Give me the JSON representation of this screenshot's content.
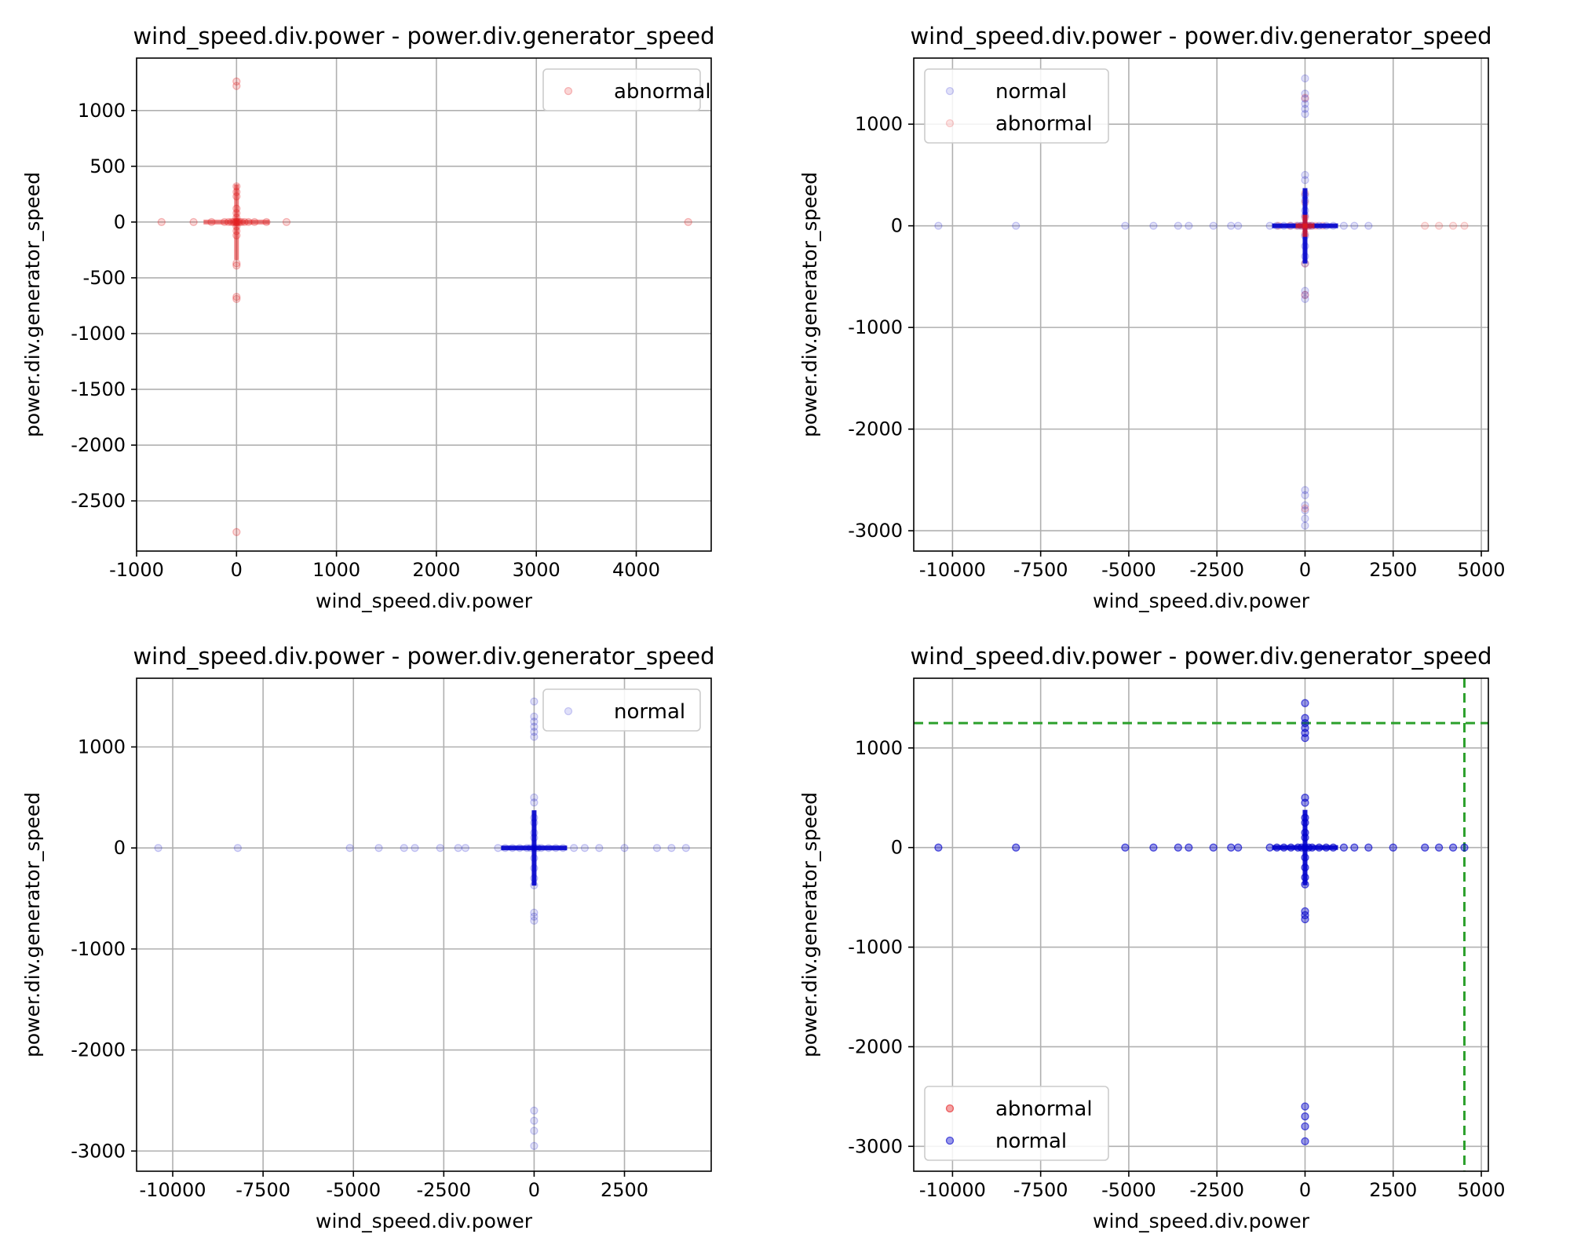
{
  "colors": {
    "abnormal": "#e41a1c",
    "normal": "#0000cc",
    "grid": "#b0b0b0",
    "threshold": "#2ca02c"
  },
  "chart_data": [
    {
      "type": "scatter",
      "title": "wind_speed.div.power - power.div.generator_speed",
      "xlabel": "wind_speed.div.power",
      "ylabel": "power.div.generator_speed",
      "xlim": [
        -1000,
        4750
      ],
      "ylim": [
        -2950,
        1470
      ],
      "xticks": [
        -1000,
        0,
        1000,
        2000,
        3000,
        4000
      ],
      "yticks": [
        -2500,
        -2000,
        -1500,
        -1000,
        -500,
        0,
        500,
        1000
      ],
      "grid": true,
      "legend_position": "upper right",
      "series": [
        {
          "name": "abnormal",
          "color": "#e41a1c",
          "opacity": 0.18,
          "x": [
            -750,
            -430,
            -250,
            -120,
            -80,
            -50,
            -30,
            -15,
            0,
            15,
            30,
            50,
            80,
            120,
            180,
            300,
            500,
            4520,
            0,
            0,
            0,
            0,
            0,
            0,
            0,
            0,
            0,
            0,
            0,
            0,
            0,
            0,
            0,
            0,
            0
          ],
          "y": [
            0,
            0,
            0,
            0,
            0,
            0,
            0,
            0,
            0,
            0,
            0,
            0,
            0,
            0,
            0,
            0,
            0,
            0,
            1260,
            1220,
            320,
            270,
            230,
            120,
            80,
            40,
            -40,
            -80,
            -120,
            -370,
            -390,
            -670,
            -690,
            -2780,
            0
          ]
        }
      ]
    },
    {
      "type": "scatter",
      "title": "wind_speed.div.power - power.div.generator_speed",
      "xlabel": "wind_speed.div.power",
      "ylabel": "power.div.generator_speed",
      "xlim": [
        -11100,
        5200
      ],
      "ylim": [
        -3200,
        1650
      ],
      "xticks": [
        -10000,
        -7500,
        -5000,
        -2500,
        0,
        2500,
        5000
      ],
      "yticks": [
        -3000,
        -2000,
        -1000,
        0,
        1000
      ],
      "grid": true,
      "legend_position": "upper left",
      "series": [
        {
          "name": "normal",
          "color": "#0000cc",
          "opacity": 0.12,
          "x": [
            -10400,
            -8200,
            -5100,
            -4300,
            -3600,
            -3300,
            -2600,
            -2100,
            -1900,
            -1000,
            -800,
            -600,
            -400,
            -200,
            -100,
            0,
            100,
            200,
            400,
            600,
            800,
            1100,
            1400,
            1800,
            0,
            0,
            0,
            0,
            0,
            0,
            0,
            0,
            0,
            0,
            0,
            0,
            0,
            0,
            0,
            0,
            0,
            0,
            0,
            0,
            0,
            0,
            0,
            0,
            0
          ],
          "y": [
            0,
            0,
            0,
            0,
            0,
            0,
            0,
            0,
            0,
            0,
            0,
            0,
            0,
            0,
            0,
            0,
            0,
            0,
            0,
            0,
            0,
            0,
            0,
            0,
            1450,
            1300,
            1250,
            1200,
            1150,
            1100,
            500,
            450,
            300,
            250,
            150,
            100,
            -100,
            -200,
            -300,
            -370,
            -640,
            -680,
            -720,
            -2600,
            -2650,
            -2750,
            -2800,
            -2880,
            -2950
          ]
        },
        {
          "name": "abnormal",
          "color": "#e41a1c",
          "opacity": 0.12,
          "x": [
            -750,
            -430,
            -250,
            -120,
            -50,
            0,
            50,
            120,
            180,
            300,
            500,
            3400,
            3800,
            4200,
            4520,
            0,
            0,
            0,
            0,
            0,
            0,
            0,
            0
          ],
          "y": [
            0,
            0,
            0,
            0,
            0,
            0,
            0,
            0,
            0,
            0,
            0,
            0,
            0,
            0,
            0,
            1260,
            320,
            230,
            80,
            -80,
            -370,
            -680,
            -2780
          ]
        }
      ]
    },
    {
      "type": "scatter",
      "title": "wind_speed.div.power - power.div.generator_speed",
      "xlabel": "wind_speed.div.power",
      "ylabel": "power.div.generator_speed",
      "xlim": [
        -11000,
        4900
      ],
      "ylim": [
        -3200,
        1680
      ],
      "xticks": [
        -10000,
        -7500,
        -5000,
        -2500,
        0,
        2500
      ],
      "yticks": [
        -3000,
        -2000,
        -1000,
        0,
        1000
      ],
      "grid": true,
      "legend_position": "upper right",
      "series": [
        {
          "name": "normal",
          "color": "#0000cc",
          "opacity": 0.12,
          "x": [
            -10400,
            -8200,
            -5100,
            -4300,
            -3600,
            -3300,
            -2600,
            -2100,
            -1900,
            -1000,
            -800,
            -600,
            -400,
            -200,
            -100,
            0,
            100,
            200,
            400,
            600,
            800,
            1100,
            1400,
            1800,
            2500,
            3400,
            3800,
            4200,
            0,
            0,
            0,
            0,
            0,
            0,
            0,
            0,
            0,
            0,
            0,
            0,
            0,
            0,
            0,
            0,
            0,
            0,
            0,
            0,
            0,
            0,
            0
          ],
          "y": [
            0,
            0,
            0,
            0,
            0,
            0,
            0,
            0,
            0,
            0,
            0,
            0,
            0,
            0,
            0,
            0,
            0,
            0,
            0,
            0,
            0,
            0,
            0,
            0,
            0,
            0,
            0,
            0,
            1450,
            1300,
            1250,
            1200,
            1150,
            1100,
            500,
            450,
            300,
            250,
            150,
            100,
            -100,
            -200,
            -300,
            -370,
            -640,
            -680,
            -720,
            -2600,
            -2700,
            -2800,
            -2950
          ]
        }
      ]
    },
    {
      "type": "scatter",
      "title": "wind_speed.div.power - power.div.generator_speed",
      "xlabel": "wind_speed.div.power",
      "ylabel": "power.div.generator_speed",
      "xlim": [
        -11100,
        5200
      ],
      "ylim": [
        -3250,
        1700
      ],
      "xticks": [
        -10000,
        -7500,
        -5000,
        -2500,
        0,
        2500,
        5000
      ],
      "yticks": [
        -3000,
        -2000,
        -1000,
        0,
        1000
      ],
      "grid": true,
      "legend_position": "lower left",
      "thresholds": {
        "x": 4520,
        "y": 1250
      },
      "series": [
        {
          "name": "abnormal",
          "color": "#e41a1c",
          "opacity": 0.4,
          "x": [],
          "y": []
        },
        {
          "name": "normal",
          "color": "#0000cc",
          "opacity": 0.4,
          "x": [
            -10400,
            -8200,
            -5100,
            -4300,
            -3600,
            -3300,
            -2600,
            -2100,
            -1900,
            -1000,
            -800,
            -600,
            -400,
            -200,
            -100,
            0,
            100,
            200,
            400,
            600,
            800,
            1100,
            1400,
            1800,
            2500,
            3400,
            3800,
            4200,
            4520,
            0,
            0,
            0,
            0,
            0,
            0,
            0,
            0,
            0,
            0,
            0,
            0,
            0,
            0,
            0,
            0,
            0,
            0,
            0,
            0,
            0,
            0,
            0
          ],
          "y": [
            0,
            0,
            0,
            0,
            0,
            0,
            0,
            0,
            0,
            0,
            0,
            0,
            0,
            0,
            0,
            0,
            0,
            0,
            0,
            0,
            0,
            0,
            0,
            0,
            0,
            0,
            0,
            0,
            0,
            1450,
            1300,
            1250,
            1200,
            1150,
            1100,
            500,
            450,
            300,
            250,
            150,
            100,
            -100,
            -200,
            -300,
            -370,
            -640,
            -680,
            -720,
            -2600,
            -2700,
            -2800,
            -2950
          ]
        }
      ]
    }
  ]
}
